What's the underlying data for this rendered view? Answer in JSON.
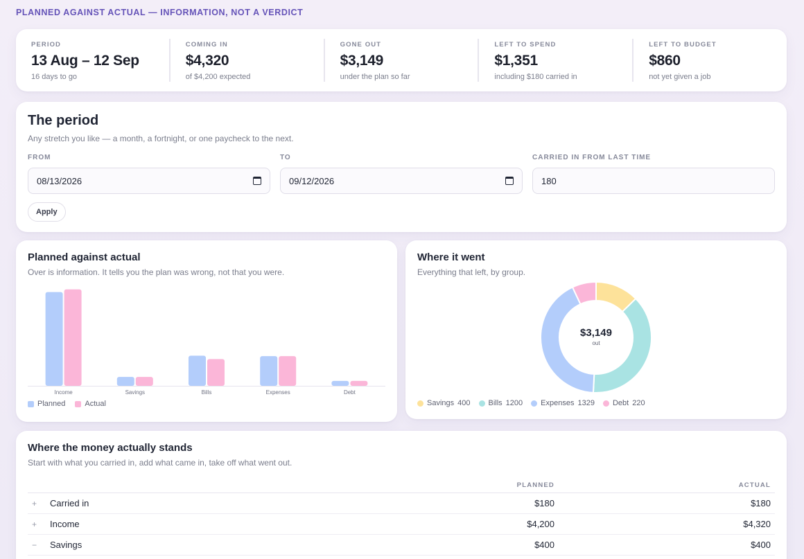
{
  "tagline": "PLANNED AGAINST ACTUAL — INFORMATION, NOT A VERDICT",
  "stats": [
    {
      "label": "PERIOD",
      "value": "13 Aug – 12 Sep",
      "sub": "16 days to go"
    },
    {
      "label": "COMING IN",
      "value": "$4,320",
      "sub": "of $4,200 expected"
    },
    {
      "label": "GONE OUT",
      "value": "$3,149",
      "sub": "under the plan so far"
    },
    {
      "label": "LEFT TO SPEND",
      "value": "$1,351",
      "sub": "including $180 carried in"
    },
    {
      "label": "LEFT TO BUDGET",
      "value": "$860",
      "sub": "not yet given a job"
    }
  ],
  "period": {
    "title": "The period",
    "desc": "Any stretch you like — a month, a fortnight, or one paycheck to the next.",
    "from_label": "FROM",
    "from_value": "08/13/2026",
    "to_label": "TO",
    "to_value": "09/12/2026",
    "carried_label": "CARRIED IN FROM LAST TIME",
    "carried_value": "180",
    "apply_label": "Apply"
  },
  "plan_chart": {
    "title": "Planned against actual",
    "desc": "Over is information. It tells you the plan was wrong, not that you were.",
    "legend_planned": "Planned",
    "legend_actual": "Actual"
  },
  "where": {
    "title": "Where it went",
    "desc": "Everything that left, by group.",
    "center_value": "$3,149",
    "center_label": "out"
  },
  "chart_data": [
    {
      "type": "bar",
      "categories": [
        "Income",
        "Savings",
        "Bills",
        "Expenses",
        "Debt"
      ],
      "series": [
        {
          "name": "Planned",
          "values": [
            4200,
            400,
            1350,
            1329,
            220
          ]
        },
        {
          "name": "Actual",
          "values": [
            4320,
            400,
            1200,
            1329,
            220
          ]
        }
      ],
      "ylim": [
        0,
        4500
      ],
      "colors": [
        "#b3cdfb",
        "#fbb6d8"
      ],
      "legend": "bottom-left",
      "grid": false
    },
    {
      "type": "pie",
      "donut": true,
      "labels": [
        "Savings",
        "Bills",
        "Expenses",
        "Debt"
      ],
      "values": [
        400,
        1200,
        1329,
        220
      ],
      "colors": [
        "#fde29a",
        "#a9e3e3",
        "#b3cdfb",
        "#fbb6d8"
      ],
      "legend": "bottom"
    }
  ],
  "stands": {
    "title": "Where the money actually stands",
    "desc": "Start with what you carried in, add what came in, take off what went out.",
    "col_planned": "PLANNED",
    "col_actual": "ACTUAL",
    "rows": [
      {
        "sign": "+",
        "name": "Carried in",
        "planned": "$180",
        "actual": "$180"
      },
      {
        "sign": "+",
        "name": "Income",
        "planned": "$4,200",
        "actual": "$4,320"
      },
      {
        "sign": "−",
        "name": "Savings",
        "planned": "$400",
        "actual": "$400"
      }
    ]
  }
}
